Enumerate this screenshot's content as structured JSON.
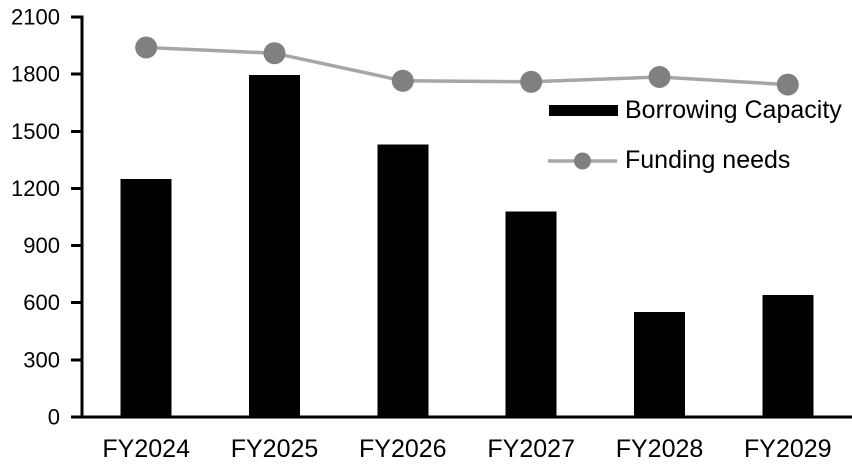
{
  "chart_data": {
    "type": "bar",
    "subtype": "bar-line-combo",
    "title": "",
    "xlabel": "",
    "ylabel": "",
    "categories": [
      "FY2024",
      "FY2025",
      "FY2026",
      "FY2027",
      "FY2028",
      "FY2029"
    ],
    "series": [
      {
        "name": "Borrowing Capacity",
        "type": "bar",
        "color": "#000000",
        "values": [
          1250,
          1795,
          1430,
          1080,
          550,
          640
        ]
      },
      {
        "name": "Funding needs",
        "type": "line",
        "line_color": "#a6a6a6",
        "marker_color": "#808080",
        "values": [
          1940,
          1910,
          1765,
          1760,
          1785,
          1745
        ]
      }
    ],
    "ylim": [
      0,
      2100
    ],
    "yticks": [
      0,
      300,
      600,
      900,
      1200,
      1500,
      1800,
      2100
    ],
    "grid": false,
    "legend_position": "inside-top-right",
    "background_color": "#ffffff",
    "axis_color": "#000000",
    "text_color": "#000000"
  }
}
